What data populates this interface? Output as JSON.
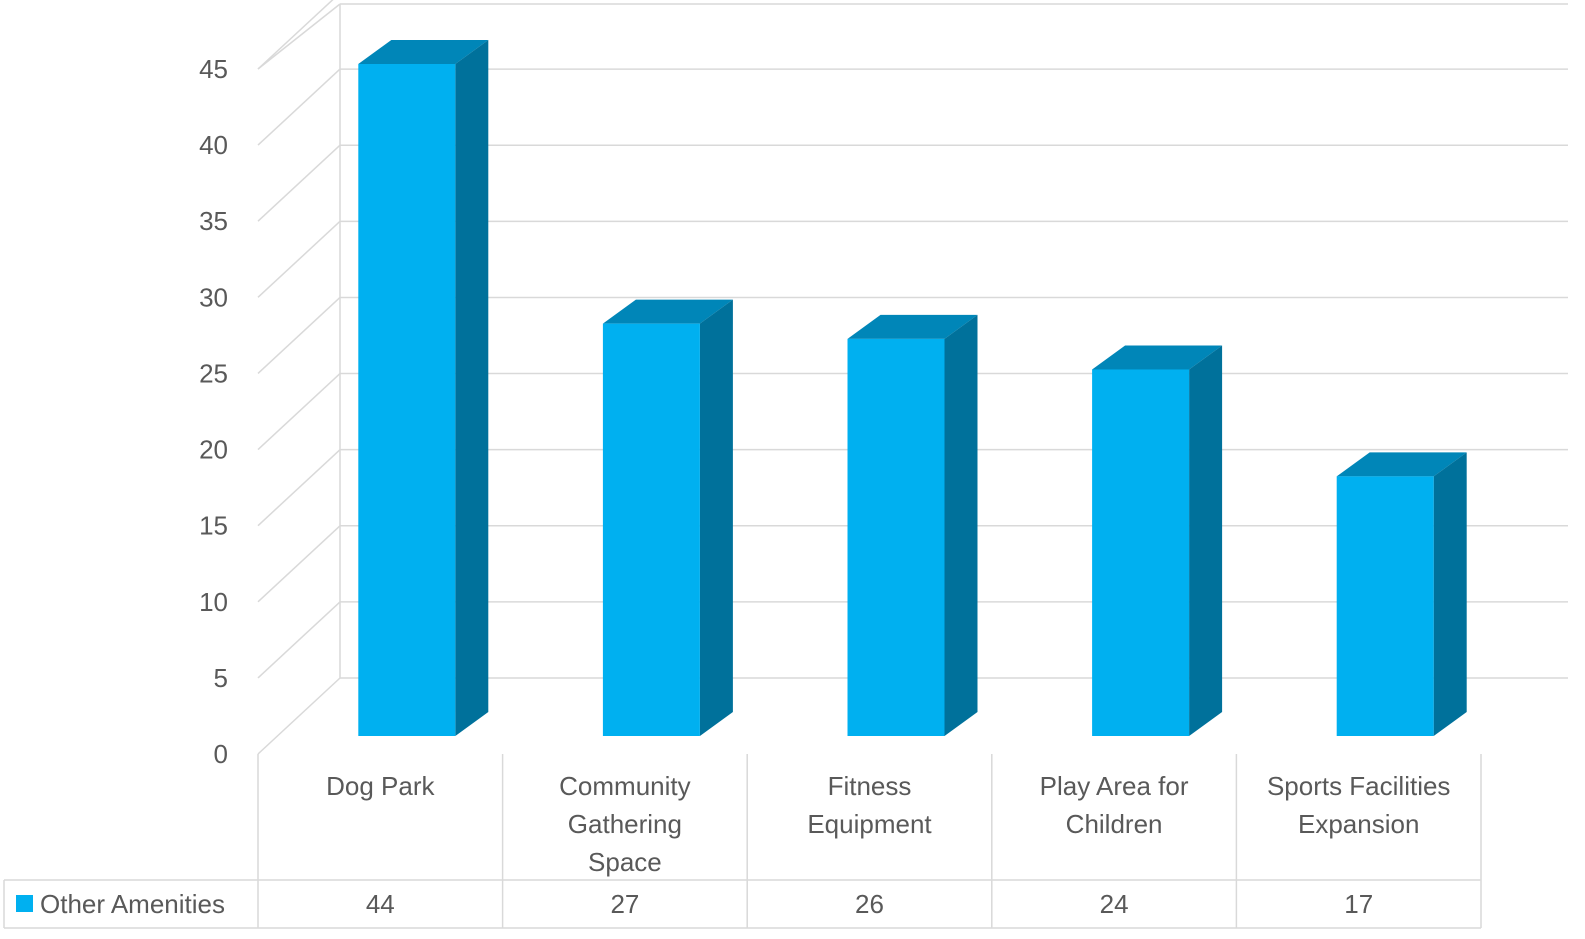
{
  "chart_data": {
    "type": "bar",
    "categories": [
      [
        "Dog Park"
      ],
      [
        "Community",
        "Gathering",
        "Space"
      ],
      [
        "Fitness",
        "Equipment"
      ],
      [
        "Play Area for",
        "Children"
      ],
      [
        "Sports Facilities",
        "Expansion"
      ]
    ],
    "series": [
      {
        "name": "Other Amenities",
        "values": [
          44,
          27,
          26,
          24,
          17
        ]
      }
    ],
    "ylim": [
      0,
      45
    ],
    "yticks": [
      0,
      5,
      10,
      15,
      20,
      25,
      30,
      35,
      40,
      45
    ],
    "grid": true,
    "legend": "data-table",
    "colors": {
      "front": "#00B0F0",
      "side": "#00719B",
      "top": "#0086B8",
      "grid": "#D9D9D9",
      "text": "#595959"
    }
  }
}
